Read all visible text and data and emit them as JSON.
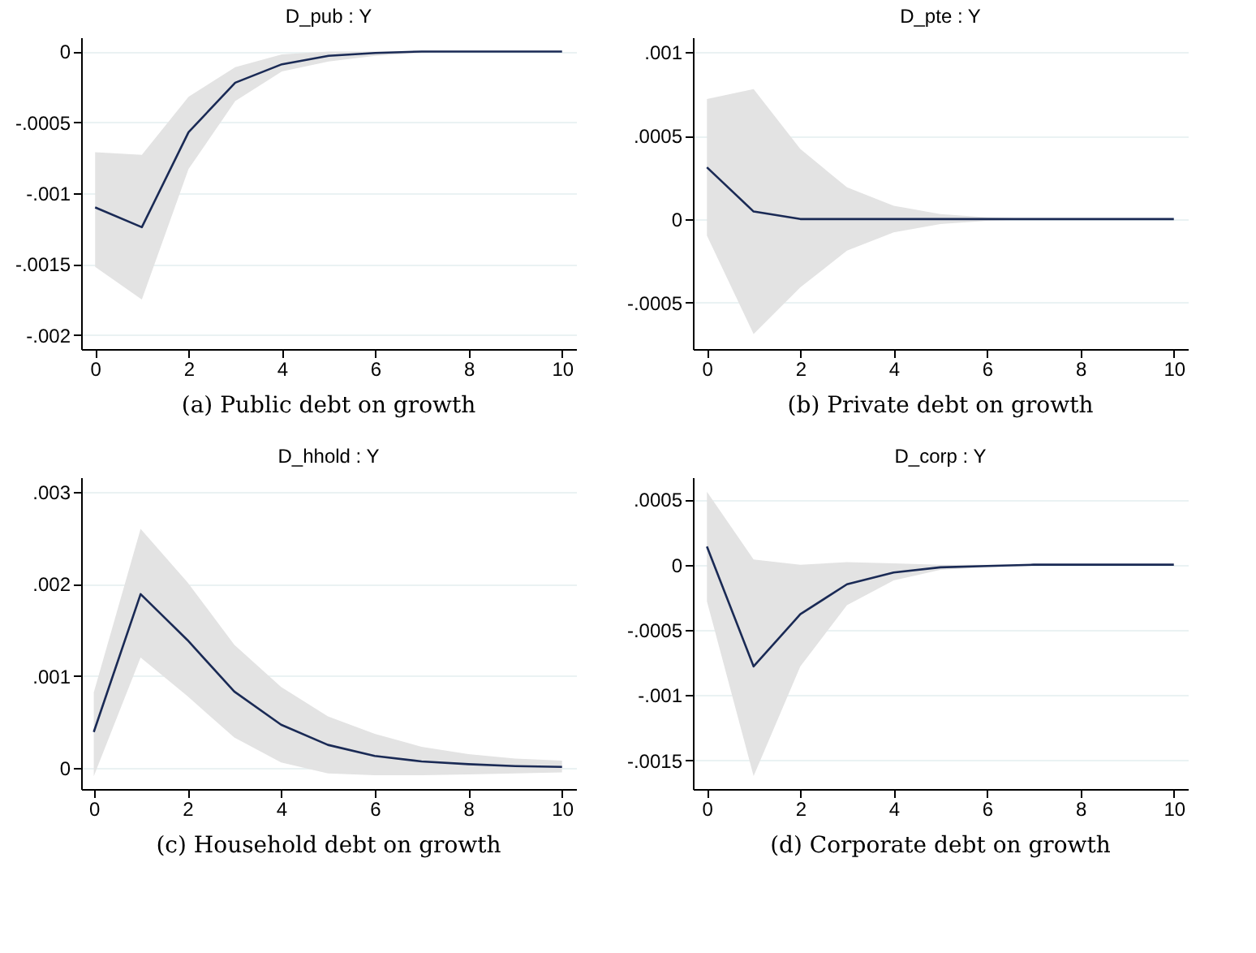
{
  "chart_data": [
    {
      "type": "line",
      "title": "D_pub : Y",
      "annotations": [
        "(a)  Public debt on growth"
      ],
      "x": [
        0,
        1,
        2,
        3,
        4,
        5,
        6,
        7,
        8,
        9,
        10
      ],
      "xlim": [
        -0.3,
        10.3
      ],
      "xticks": [
        0,
        2,
        4,
        6,
        8,
        10
      ],
      "ylim": [
        -0.0021,
        0.0001
      ],
      "yticks": [
        {
          "value": -0.002,
          "label": "-.002"
        },
        {
          "value": -0.0015,
          "label": "-.0015"
        },
        {
          "value": -0.001,
          "label": "-.001"
        },
        {
          "value": -0.0005,
          "label": "-.0005"
        },
        {
          "value": 0,
          "label": "0"
        }
      ],
      "grid": "y",
      "series": [
        {
          "color": "#1a2a55",
          "values": [
            -0.0011,
            -0.00124,
            -0.00057,
            -0.00022,
            -9e-05,
            -3e-05,
            -1e-05,
            0,
            0,
            0,
            0
          ],
          "lower": [
            -0.00152,
            -0.00175,
            -0.00083,
            -0.00035,
            -0.00014,
            -7e-05,
            -3e-05,
            -1e-05,
            0,
            0,
            0
          ],
          "upper": [
            -0.00071,
            -0.00073,
            -0.00032,
            -0.00011,
            -2e-05,
            0,
            0,
            0,
            0,
            0,
            0
          ]
        }
      ]
    },
    {
      "type": "line",
      "title": "D_pte : Y",
      "annotations": [
        "(b)  Private debt on growth"
      ],
      "x": [
        0,
        1,
        2,
        3,
        4,
        5,
        6,
        7,
        8,
        9,
        10
      ],
      "xlim": [
        -0.3,
        10.3
      ],
      "xticks": [
        0,
        2,
        4,
        6,
        8,
        10
      ],
      "ylim": [
        -0.00078,
        0.00109
      ],
      "yticks": [
        {
          "value": -0.0005,
          "label": "-.0005"
        },
        {
          "value": 0,
          "label": "0"
        },
        {
          "value": 0.0005,
          "label": ".0005"
        },
        {
          "value": 0.001,
          "label": ".001"
        }
      ],
      "grid": "y",
      "series": [
        {
          "color": "#1a2a55",
          "values": [
            0.00031,
            4.5e-05,
            0,
            0,
            0,
            0,
            0,
            0,
            0,
            0,
            0
          ],
          "lower": [
            -0.0001,
            -0.00069,
            -0.00041,
            -0.00019,
            -8e-05,
            -3e-05,
            -1e-05,
            0,
            0,
            0,
            0
          ],
          "upper": [
            0.00072,
            0.00078,
            0.00042,
            0.00019,
            8e-05,
            3e-05,
            1e-05,
            0,
            0,
            0,
            0
          ]
        }
      ]
    },
    {
      "type": "line",
      "title": "D_hhold : Y",
      "annotations": [
        "(c)  Household debt on growth"
      ],
      "x": [
        0,
        1,
        2,
        3,
        4,
        5,
        6,
        7,
        8,
        9,
        10
      ],
      "xlim": [
        -0.27,
        10.3
      ],
      "xticks": [
        0,
        2,
        4,
        6,
        8,
        10
      ],
      "ylim": [
        -0.00023,
        0.00316
      ],
      "yticks": [
        {
          "value": 0,
          "label": "0"
        },
        {
          "value": 0.001,
          "label": ".001"
        },
        {
          "value": 0.002,
          "label": ".002"
        },
        {
          "value": 0.003,
          "label": ".003"
        }
      ],
      "grid": "y",
      "series": [
        {
          "color": "#1a2a55",
          "values": [
            0.00039,
            0.00189,
            0.00139,
            0.00083,
            0.00047,
            0.00025,
            0.00013,
            7e-05,
            4e-05,
            2e-05,
            1e-05
          ],
          "lower": [
            -9e-05,
            0.0012,
            0.00078,
            0.00033,
            6e-05,
            -6e-05,
            -8e-05,
            -8e-05,
            -7e-05,
            -6e-05,
            -5e-05
          ],
          "upper": [
            0.00082,
            0.0026,
            0.00202,
            0.00134,
            0.00088,
            0.00056,
            0.00037,
            0.00023,
            0.00015,
            0.0001,
            8e-05
          ]
        }
      ]
    },
    {
      "type": "line",
      "title": "D_corp : Y",
      "annotations": [
        "(d)  Corporate debt on growth"
      ],
      "x": [
        0,
        1,
        2,
        3,
        4,
        5,
        6,
        7,
        8,
        9,
        10
      ],
      "xlim": [
        -0.3,
        10.3
      ],
      "xticks": [
        0,
        2,
        4,
        6,
        8,
        10
      ],
      "ylim": [
        -0.00172,
        0.00067
      ],
      "yticks": [
        {
          "value": -0.0015,
          "label": "-.0015"
        },
        {
          "value": -0.001,
          "label": "-.001"
        },
        {
          "value": -0.0005,
          "label": "-.0005"
        },
        {
          "value": 0,
          "label": "0"
        },
        {
          "value": 0.0005,
          "label": ".0005"
        }
      ],
      "grid": "y",
      "series": [
        {
          "color": "#1a2a55",
          "values": [
            0.00014,
            -0.00078,
            -0.00038,
            -0.00015,
            -6e-05,
            -2e-05,
            -1e-05,
            0,
            0,
            0,
            0
          ],
          "lower": [
            -0.00028,
            -0.00162,
            -0.00078,
            -0.00031,
            -0.00012,
            -4e-05,
            -2e-05,
            -1e-05,
            0,
            0,
            0
          ],
          "upper": [
            0.00056,
            4e-05,
            0,
            2e-05,
            1e-05,
            0,
            0,
            0,
            0,
            0,
            0
          ]
        }
      ]
    }
  ]
}
